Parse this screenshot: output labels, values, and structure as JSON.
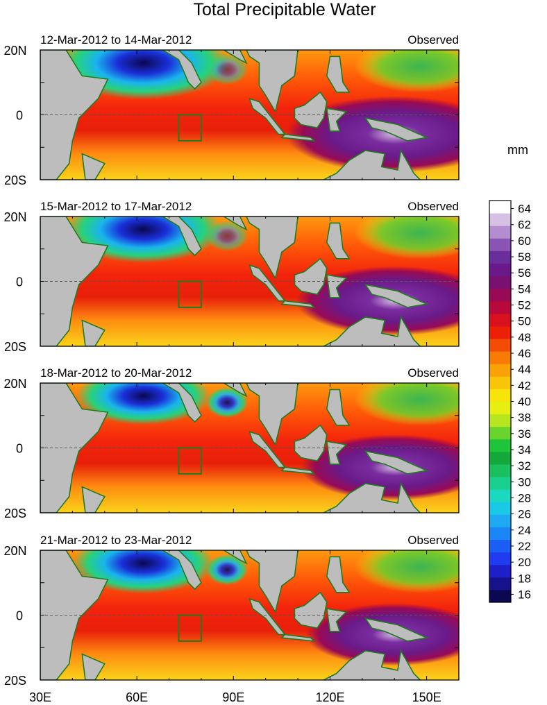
{
  "title": "Total Precipitable Water",
  "units_label": "mm",
  "panels": [
    {
      "date_range": "12-Mar-2012 to 14-Mar-2012",
      "status": "Observed",
      "dry_level": 0.95,
      "wet_level": 0.9
    },
    {
      "date_range": "15-Mar-2012 to 17-Mar-2012",
      "status": "Observed",
      "dry_level": 0.85,
      "wet_level": 0.8
    },
    {
      "date_range": "18-Mar-2012 to 20-Mar-2012",
      "status": "Observed",
      "dry_level": 0.7,
      "wet_level": 0.75
    },
    {
      "date_range": "21-Mar-2012 to 23-Mar-2012",
      "status": "Observed",
      "dry_level": 0.75,
      "wet_level": 0.7
    }
  ],
  "lat_labels": [
    "20N",
    "0",
    "20S"
  ],
  "lon_labels": [
    "30E",
    "60E",
    "90E",
    "120E",
    "150E"
  ],
  "lon_values": [
    30,
    60,
    90,
    120,
    150
  ],
  "extent": {
    "lon_min": 30,
    "lon_max": 160,
    "lat_min": -20,
    "lat_max": 20
  },
  "colorbar": {
    "labels": [
      "64",
      "62",
      "60",
      "58",
      "56",
      "54",
      "52",
      "50",
      "48",
      "46",
      "44",
      "42",
      "40",
      "38",
      "36",
      "34",
      "32",
      "30",
      "28",
      "26",
      "24",
      "22",
      "20",
      "18",
      "16"
    ],
    "min": 15,
    "max": 65,
    "colors": [
      "#0b0750",
      "#15128c",
      "#1d1fc8",
      "#1f3cf0",
      "#1a5ef5",
      "#1a86f6",
      "#1ea9f2",
      "#19c9e6",
      "#1bd9c0",
      "#1ad08e",
      "#1bc05e",
      "#12a83a",
      "#1ec43a",
      "#68d42c",
      "#b6e61e",
      "#e5ef12",
      "#f7e40a",
      "#f9c509",
      "#f9a107",
      "#f77b05",
      "#f44c05",
      "#ec1f07",
      "#d9101e",
      "#b8093a",
      "#980a55",
      "#7a1070",
      "#6a1a88",
      "#6a2e9c",
      "#8a54b4",
      "#b48cd0",
      "#d6c0e4",
      "#ffffff"
    ]
  },
  "colors": {
    "land": "#bdbdbd",
    "coast": "#207a20",
    "box": "#1e7d1e"
  }
}
